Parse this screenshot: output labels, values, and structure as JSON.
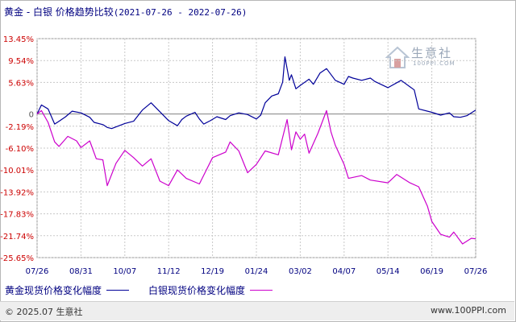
{
  "header": {
    "title_main": "黄金 - 白银 价格趋势比较",
    "title_range": "(2021-07-26 - 2022-07-26)"
  },
  "watermark": {
    "brand": "生意社",
    "site": "100PPI.COM"
  },
  "footer": {
    "copyright": "© 2025.07 生意社",
    "site": "www.100PPI.com"
  },
  "colors": {
    "gold": "#000099",
    "silver": "#cc00cc",
    "axis_label": "#cc0000",
    "grid": "#c8c8c8",
    "zero_line": "#808080"
  },
  "chart_data": {
    "type": "line",
    "title": "黄金 - 白银 价格趋势比较",
    "ylim": [
      -25.65,
      13.45
    ],
    "y_ticks": [
      "13.45%",
      "9.54%",
      "5.63%",
      "0",
      "-2.19%",
      "-6.10%",
      "-10.01%",
      "-13.92%",
      "-17.83%",
      "-21.74%",
      "-25.65%"
    ],
    "y_tick_values": [
      13.45,
      9.54,
      5.63,
      0,
      -2.19,
      -6.1,
      -10.01,
      -13.92,
      -17.83,
      -21.74,
      -25.65
    ],
    "x_ticks": [
      "07/26",
      "08/31",
      "10/07",
      "11/12",
      "12/19",
      "01/24",
      "03/02",
      "04/07",
      "05/14",
      "06/19",
      "07/26"
    ],
    "grid": true,
    "legend_position": "bottom-left",
    "series": [
      {
        "name": "黄金现货价格变化幅度",
        "color": "#000099",
        "x": [
          0,
          0.01,
          0.025,
          0.04,
          0.05,
          0.065,
          0.08,
          0.1,
          0.12,
          0.13,
          0.15,
          0.16,
          0.17,
          0.2,
          0.22,
          0.24,
          0.26,
          0.28,
          0.3,
          0.32,
          0.33,
          0.34,
          0.36,
          0.37,
          0.38,
          0.395,
          0.41,
          0.43,
          0.44,
          0.46,
          0.48,
          0.5,
          0.51,
          0.52,
          0.535,
          0.55,
          0.56,
          0.565,
          0.575,
          0.58,
          0.59,
          0.6,
          0.62,
          0.63,
          0.645,
          0.66,
          0.68,
          0.7,
          0.71,
          0.72,
          0.74,
          0.76,
          0.77,
          0.8,
          0.83,
          0.86,
          0.87,
          0.9,
          0.92,
          0.94,
          0.95,
          0.965,
          0.98,
          1.0
        ],
        "y": [
          0.0,
          1.6,
          0.9,
          -1.8,
          -1.3,
          -0.5,
          0.5,
          0.2,
          -0.6,
          -1.5,
          -1.9,
          -2.4,
          -2.6,
          -1.7,
          -1.3,
          0.7,
          2.0,
          0.4,
          -1.2,
          -2.1,
          -1.0,
          -0.4,
          0.3,
          -0.9,
          -1.8,
          -1.2,
          -0.5,
          -1.0,
          -0.3,
          0.2,
          -0.1,
          -0.9,
          -0.2,
          2.0,
          3.2,
          3.6,
          5.7,
          10.2,
          6.0,
          7.0,
          4.5,
          5.1,
          6.2,
          5.3,
          7.3,
          8.1,
          6.0,
          5.3,
          6.7,
          6.4,
          6.0,
          6.4,
          5.8,
          4.7,
          6.0,
          4.3,
          0.9,
          0.3,
          -0.2,
          0.2,
          -0.5,
          -0.6,
          -0.3,
          0.7
        ]
      },
      {
        "name": "白银现货价格变化幅度",
        "color": "#cc00cc",
        "x": [
          0,
          0.01,
          0.025,
          0.04,
          0.05,
          0.07,
          0.09,
          0.1,
          0.12,
          0.135,
          0.15,
          0.16,
          0.18,
          0.2,
          0.22,
          0.24,
          0.26,
          0.28,
          0.3,
          0.32,
          0.34,
          0.37,
          0.4,
          0.43,
          0.44,
          0.46,
          0.48,
          0.5,
          0.52,
          0.55,
          0.57,
          0.58,
          0.59,
          0.6,
          0.61,
          0.62,
          0.64,
          0.66,
          0.67,
          0.68,
          0.7,
          0.71,
          0.74,
          0.76,
          0.8,
          0.82,
          0.85,
          0.87,
          0.89,
          0.9,
          0.92,
          0.94,
          0.95,
          0.97,
          0.99,
          1.0
        ],
        "y": [
          0.0,
          0.6,
          -1.5,
          -5.0,
          -5.8,
          -4.0,
          -4.8,
          -6.0,
          -4.8,
          -8.0,
          -8.2,
          -12.8,
          -8.8,
          -6.5,
          -7.8,
          -9.3,
          -8.0,
          -12.0,
          -12.8,
          -10.0,
          -11.5,
          -12.5,
          -7.8,
          -6.8,
          -5.0,
          -6.6,
          -10.5,
          -9.0,
          -6.6,
          -7.3,
          -1.0,
          -6.4,
          -3.2,
          -4.5,
          -3.6,
          -7.0,
          -3.5,
          0.6,
          -3.2,
          -5.6,
          -9.0,
          -11.5,
          -11.0,
          -11.8,
          -12.3,
          -10.8,
          -12.3,
          -13.0,
          -16.5,
          -19.2,
          -21.5,
          -22.0,
          -21.1,
          -23.2,
          -22.2,
          -22.3
        ]
      }
    ]
  }
}
